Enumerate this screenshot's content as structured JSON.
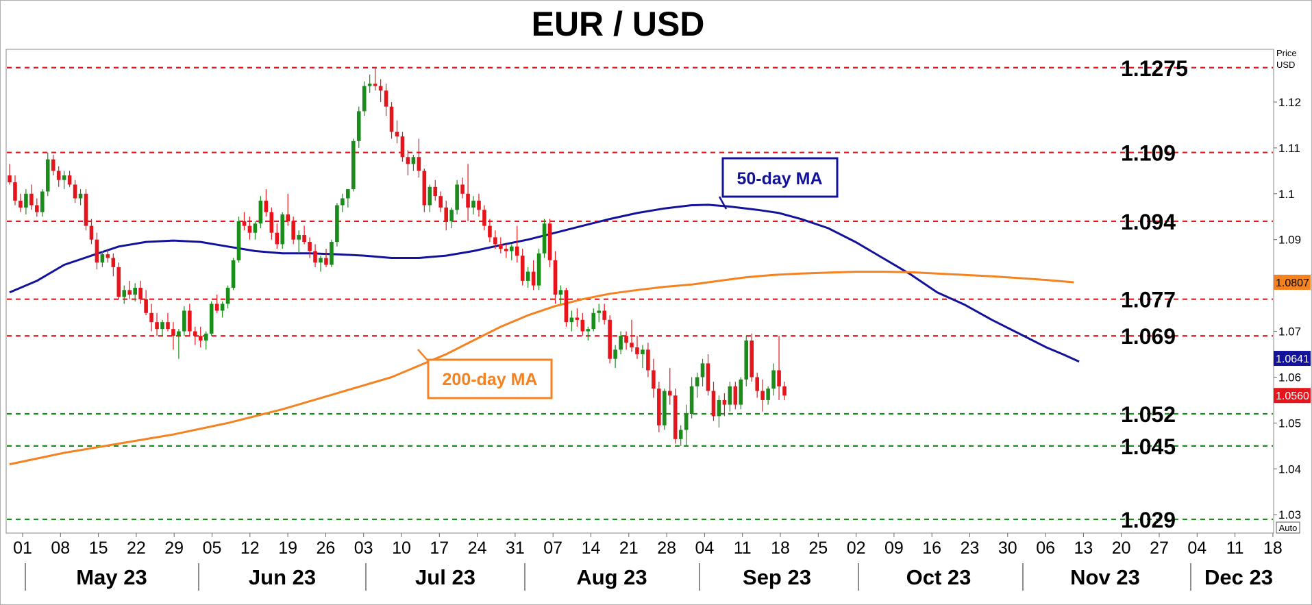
{
  "chart_data": {
    "type": "candlestick",
    "title": "EUR / USD",
    "y_axis_caption": [
      "Price",
      "USD"
    ],
    "ylim": [
      1.026,
      1.1315
    ],
    "y_ticks": [
      1.03,
      1.04,
      1.05,
      1.06,
      1.07,
      1.08,
      1.09,
      1.1,
      1.11,
      1.12
    ],
    "y_tick_labels": [
      "1.03",
      "1.04",
      "1.05",
      "1.06",
      "1.07",
      "",
      "1.09",
      "1.1",
      "1.11",
      "1.12"
    ],
    "auto_label": "Auto",
    "x_ticks": [
      "01",
      "08",
      "15",
      "22",
      "29",
      "05",
      "12",
      "19",
      "26",
      "03",
      "10",
      "17",
      "24",
      "31",
      "07",
      "14",
      "21",
      "28",
      "04",
      "11",
      "18",
      "25",
      "02",
      "09",
      "16",
      "23",
      "30",
      "06",
      "13",
      "20",
      "27",
      "04",
      "11",
      "18"
    ],
    "months": [
      "May 23",
      "Jun 23",
      "Jul 23",
      "Aug 23",
      "Sep 23",
      "Oct 23",
      "Nov 23",
      "Dec 23"
    ],
    "levels": [
      {
        "value": 1.1275,
        "label": "1.1275",
        "color": "#e8141b"
      },
      {
        "value": 1.109,
        "label": "1.109",
        "color": "#e8141b"
      },
      {
        "value": 1.094,
        "label": "1.094",
        "color": "#e8141b"
      },
      {
        "value": 1.077,
        "label": "1.077",
        "color": "#e8141b"
      },
      {
        "value": 1.069,
        "label": "1.069",
        "color": "#e8141b"
      },
      {
        "value": 1.052,
        "label": "1.052",
        "color": "#1a8c1a"
      },
      {
        "value": 1.045,
        "label": "1.045",
        "color": "#1a8c1a"
      },
      {
        "value": 1.029,
        "label": "1.029",
        "color": "#1a8c1a"
      }
    ],
    "price_badges": [
      {
        "value": 1.0807,
        "label": "1.0807",
        "bg": "#f58220",
        "fg": "#000000"
      },
      {
        "value": 1.0641,
        "label": "1.0641",
        "bg": "#12129a",
        "fg": "#ffffff"
      },
      {
        "value": 1.056,
        "label": "1.0560",
        "bg": "#e8141b",
        "fg": "#ffffff"
      }
    ],
    "series": [
      {
        "name": "50-day MA",
        "color": "#12129a",
        "points": [
          [
            0,
            1.0785
          ],
          [
            5,
            1.081
          ],
          [
            10,
            1.0845
          ],
          [
            15,
            1.0865
          ],
          [
            20,
            1.0885
          ],
          [
            25,
            1.0895
          ],
          [
            30,
            1.0898
          ],
          [
            35,
            1.0895
          ],
          [
            40,
            1.0885
          ],
          [
            45,
            1.0875
          ],
          [
            50,
            1.087
          ],
          [
            55,
            1.087
          ],
          [
            60,
            1.0868
          ],
          [
            65,
            1.0865
          ],
          [
            70,
            1.086
          ],
          [
            75,
            1.086
          ],
          [
            80,
            1.0865
          ],
          [
            85,
            1.0875
          ],
          [
            90,
            1.0888
          ],
          [
            95,
            1.09
          ],
          [
            100,
            1.0915
          ],
          [
            105,
            1.093
          ],
          [
            110,
            1.0945
          ],
          [
            115,
            1.0958
          ],
          [
            120,
            1.0968
          ],
          [
            125,
            1.0975
          ],
          [
            128,
            1.0976
          ],
          [
            132,
            1.0972
          ],
          [
            137,
            1.0965
          ],
          [
            141,
            1.0958
          ],
          [
            145,
            1.0945
          ],
          [
            150,
            1.0925
          ],
          [
            155,
            1.0895
          ],
          [
            160,
            1.086
          ],
          [
            165,
            1.0825
          ],
          [
            170,
            1.0785
          ],
          [
            175,
            1.0758
          ],
          [
            180,
            1.0725
          ],
          [
            185,
            1.0695
          ],
          [
            190,
            1.0665
          ],
          [
            193,
            1.065
          ],
          [
            196,
            1.0634
          ]
        ]
      },
      {
        "name": "200-day MA",
        "color": "#f58220",
        "points": [
          [
            0,
            1.041
          ],
          [
            10,
            1.0435
          ],
          [
            20,
            1.0455
          ],
          [
            30,
            1.0475
          ],
          [
            40,
            1.05
          ],
          [
            50,
            1.053
          ],
          [
            60,
            1.0565
          ],
          [
            70,
            1.06
          ],
          [
            80,
            1.065
          ],
          [
            85,
            1.068
          ],
          [
            90,
            1.071
          ],
          [
            95,
            1.0735
          ],
          [
            100,
            1.0755
          ],
          [
            105,
            1.077
          ],
          [
            110,
            1.0782
          ],
          [
            115,
            1.079
          ],
          [
            120,
            1.0797
          ],
          [
            125,
            1.0802
          ],
          [
            130,
            1.081
          ],
          [
            135,
            1.0818
          ],
          [
            140,
            1.0823
          ],
          [
            145,
            1.0826
          ],
          [
            150,
            1.0828
          ],
          [
            155,
            1.083
          ],
          [
            160,
            1.083
          ],
          [
            165,
            1.0829
          ],
          [
            170,
            1.0826
          ],
          [
            175,
            1.0823
          ],
          [
            180,
            1.082
          ],
          [
            185,
            1.0816
          ],
          [
            190,
            1.0812
          ],
          [
            195,
            1.0807
          ]
        ]
      }
    ],
    "annotations": [
      {
        "text": "50-day MA",
        "color": "#12129a"
      },
      {
        "text": "200-day MA",
        "color": "#f58220"
      }
    ],
    "candles": [
      [
        1.104,
        1.1065,
        1.102,
        1.1025
      ],
      [
        1.1025,
        1.104,
        1.0975,
        1.0985
      ],
      [
        1.0985,
        1.1,
        1.096,
        1.097
      ],
      [
        1.097,
        1.101,
        1.0955,
        1.1
      ],
      [
        1.1,
        1.102,
        1.0965,
        1.0975
      ],
      [
        1.0975,
        1.099,
        1.095,
        1.096
      ],
      [
        1.096,
        1.101,
        1.095,
        1.1005
      ],
      [
        1.1005,
        1.109,
        1.0995,
        1.1075
      ],
      [
        1.1075,
        1.1085,
        1.104,
        1.105
      ],
      [
        1.105,
        1.106,
        1.1015,
        1.103
      ],
      [
        1.103,
        1.105,
        1.101,
        1.104
      ],
      [
        1.104,
        1.105,
        1.1015,
        1.102
      ],
      [
        1.102,
        1.103,
        1.098,
        1.099
      ],
      [
        1.099,
        1.101,
        1.0975,
        1.1
      ],
      [
        1.1,
        1.101,
        1.092,
        1.093
      ],
      [
        1.093,
        1.0945,
        1.089,
        1.09
      ],
      [
        1.09,
        1.0915,
        1.0835,
        1.085
      ],
      [
        1.085,
        1.0875,
        1.084,
        1.0868
      ],
      [
        1.0868,
        1.088,
        1.085,
        1.086
      ],
      [
        1.086,
        1.087,
        1.082,
        1.084
      ],
      [
        1.084,
        1.085,
        1.077,
        1.0775
      ],
      [
        1.0775,
        1.08,
        1.076,
        1.079
      ],
      [
        1.079,
        1.081,
        1.077,
        1.078
      ],
      [
        1.078,
        1.0805,
        1.0765,
        1.0795
      ],
      [
        1.0795,
        1.081,
        1.076,
        1.077
      ],
      [
        1.077,
        1.079,
        1.0735,
        1.074
      ],
      [
        1.074,
        1.076,
        1.07,
        1.072
      ],
      [
        1.072,
        1.074,
        1.069,
        1.0705
      ],
      [
        1.0705,
        1.0725,
        1.069,
        1.072
      ],
      [
        1.072,
        1.074,
        1.07,
        1.0705
      ],
      [
        1.0705,
        1.072,
        1.066,
        1.069
      ],
      [
        1.069,
        1.0705,
        1.064,
        1.07
      ],
      [
        1.07,
        1.0755,
        1.069,
        1.0745
      ],
      [
        1.0745,
        1.076,
        1.069,
        1.07
      ],
      [
        1.07,
        1.071,
        1.067,
        1.069
      ],
      [
        1.069,
        1.071,
        1.0665,
        1.068
      ],
      [
        1.068,
        1.07,
        1.066,
        1.0695
      ],
      [
        1.0695,
        1.0765,
        1.069,
        1.076
      ],
      [
        1.076,
        1.078,
        1.074,
        1.0745
      ],
      [
        1.0745,
        1.0765,
        1.073,
        1.076
      ],
      [
        1.076,
        1.08,
        1.075,
        1.0795
      ],
      [
        1.0795,
        1.086,
        1.079,
        1.0855
      ],
      [
        1.0855,
        1.095,
        1.085,
        1.094
      ],
      [
        1.094,
        1.096,
        1.092,
        1.093
      ],
      [
        1.093,
        1.095,
        1.09,
        1.0915
      ],
      [
        1.0915,
        1.094,
        1.09,
        1.0935
      ],
      [
        1.0935,
        1.0995,
        1.0925,
        1.0985
      ],
      [
        1.0985,
        1.101,
        1.095,
        1.096
      ],
      [
        1.096,
        1.097,
        1.09,
        1.0915
      ],
      [
        1.0915,
        1.0935,
        1.088,
        1.089
      ],
      [
        1.089,
        1.096,
        1.088,
        1.0955
      ],
      [
        1.0955,
        1.1,
        1.093,
        1.094
      ],
      [
        1.094,
        1.095,
        1.089,
        1.09
      ],
      [
        1.09,
        1.092,
        1.087,
        1.091
      ],
      [
        1.091,
        1.093,
        1.089,
        1.0895
      ],
      [
        1.0895,
        1.0905,
        1.086,
        1.0875
      ],
      [
        1.0875,
        1.089,
        1.084,
        1.085
      ],
      [
        1.085,
        1.0865,
        1.083,
        1.086
      ],
      [
        1.086,
        1.088,
        1.084,
        1.0845
      ],
      [
        1.0845,
        1.09,
        1.084,
        1.0895
      ],
      [
        1.0895,
        1.098,
        1.0885,
        1.0975
      ],
      [
        1.0975,
        1.1,
        1.096,
        1.099
      ],
      [
        1.099,
        1.101,
        1.097,
        1.101
      ],
      [
        1.101,
        1.112,
        1.1005,
        1.1115
      ],
      [
        1.1115,
        1.119,
        1.11,
        1.118
      ],
      [
        1.118,
        1.1245,
        1.117,
        1.1235
      ],
      [
        1.1235,
        1.126,
        1.122,
        1.124
      ],
      [
        1.124,
        1.1275,
        1.1225,
        1.1235
      ],
      [
        1.1235,
        1.125,
        1.12,
        1.1225
      ],
      [
        1.1225,
        1.124,
        1.117,
        1.119
      ],
      [
        1.119,
        1.12,
        1.112,
        1.1135
      ],
      [
        1.1135,
        1.116,
        1.111,
        1.1125
      ],
      [
        1.1125,
        1.1135,
        1.107,
        1.108
      ],
      [
        1.108,
        1.1095,
        1.104,
        1.1065
      ],
      [
        1.1065,
        1.1085,
        1.105,
        1.108
      ],
      [
        1.108,
        1.112,
        1.1035,
        1.105
      ],
      [
        1.105,
        1.1055,
        1.096,
        1.0975
      ],
      [
        1.0975,
        1.102,
        1.096,
        1.1015
      ],
      [
        1.1015,
        1.103,
        1.0985,
        1.0995
      ],
      [
        1.0995,
        1.1005,
        1.096,
        1.097
      ],
      [
        1.097,
        1.0985,
        1.092,
        1.094
      ],
      [
        1.094,
        1.097,
        1.0925,
        1.0965
      ],
      [
        1.0965,
        1.103,
        1.0955,
        1.102
      ],
      [
        1.102,
        1.1035,
        1.099,
        1.1
      ],
      [
        1.1,
        1.1065,
        1.094,
        1.097
      ],
      [
        1.097,
        1.0995,
        1.0955,
        1.0985
      ],
      [
        1.0985,
        1.1,
        1.095,
        1.0965
      ],
      [
        1.0965,
        1.0975,
        1.092,
        1.093
      ],
      [
        1.093,
        1.0945,
        1.0895,
        1.0905
      ],
      [
        1.0905,
        1.092,
        1.088,
        1.089
      ],
      [
        1.089,
        1.0905,
        1.087,
        1.088
      ],
      [
        1.088,
        1.089,
        1.086,
        1.0875
      ],
      [
        1.0875,
        1.089,
        1.0855,
        1.0885
      ],
      [
        1.0885,
        1.093,
        1.085,
        1.0865
      ],
      [
        1.0865,
        1.088,
        1.08,
        1.081
      ],
      [
        1.081,
        1.084,
        1.0795,
        1.083
      ],
      [
        1.083,
        1.0855,
        1.079,
        1.08
      ],
      [
        1.08,
        1.088,
        1.079,
        1.087
      ],
      [
        1.087,
        1.0945,
        1.086,
        1.0935
      ],
      [
        1.0935,
        1.0945,
        1.084,
        1.0855
      ],
      [
        1.0855,
        1.0875,
        1.076,
        1.078
      ],
      [
        1.078,
        1.08,
        1.076,
        1.079
      ],
      [
        1.079,
        1.0795,
        1.071,
        1.072
      ],
      [
        1.072,
        1.0745,
        1.07,
        1.073
      ],
      [
        1.073,
        1.075,
        1.071,
        1.0725
      ],
      [
        1.0725,
        1.074,
        1.069,
        1.07
      ],
      [
        1.07,
        1.071,
        1.068,
        1.0705
      ],
      [
        1.0705,
        1.075,
        1.07,
        1.074
      ],
      [
        1.074,
        1.076,
        1.072,
        1.0745
      ],
      [
        1.0745,
        1.076,
        1.0715,
        1.0725
      ],
      [
        1.0725,
        1.0735,
        1.063,
        1.064
      ],
      [
        1.064,
        1.067,
        1.062,
        1.066
      ],
      [
        1.066,
        1.07,
        1.065,
        1.069
      ],
      [
        1.069,
        1.07,
        1.066,
        1.0675
      ],
      [
        1.0675,
        1.0725,
        1.0655,
        1.0665
      ],
      [
        1.0665,
        1.069,
        1.064,
        1.065
      ],
      [
        1.065,
        1.067,
        1.062,
        1.066
      ],
      [
        1.066,
        1.0675,
        1.06,
        1.0615
      ],
      [
        1.0615,
        1.064,
        1.0555,
        1.0575
      ],
      [
        1.0575,
        1.059,
        1.048,
        1.0495
      ],
      [
        1.0495,
        1.0575,
        1.0485,
        1.057
      ],
      [
        1.057,
        1.062,
        1.054,
        1.056
      ],
      [
        1.056,
        1.0575,
        1.0455,
        1.0465
      ],
      [
        1.0465,
        1.0495,
        1.045,
        1.0485
      ],
      [
        1.0485,
        1.054,
        1.045,
        1.052
      ],
      [
        1.052,
        1.06,
        1.051,
        1.058
      ],
      [
        1.058,
        1.061,
        1.0555,
        1.06
      ],
      [
        1.06,
        1.064,
        1.058,
        1.063
      ],
      [
        1.063,
        1.065,
        1.056,
        1.057
      ],
      [
        1.057,
        1.059,
        1.0505,
        1.0515
      ],
      [
        1.0515,
        1.056,
        1.049,
        1.055
      ],
      [
        1.055,
        1.0565,
        1.0515,
        1.054
      ],
      [
        1.054,
        1.059,
        1.0525,
        1.058
      ],
      [
        1.058,
        1.059,
        1.053,
        1.054
      ],
      [
        1.054,
        1.06,
        1.053,
        1.0595
      ],
      [
        1.0595,
        1.069,
        1.058,
        1.068
      ],
      [
        1.068,
        1.0695,
        1.059,
        1.06
      ],
      [
        1.06,
        1.061,
        1.0555,
        1.057
      ],
      [
        1.057,
        1.0595,
        1.0525,
        1.055
      ],
      [
        1.055,
        1.058,
        1.054,
        1.0575
      ],
      [
        1.0575,
        1.063,
        1.056,
        1.0615
      ],
      [
        1.0615,
        1.069,
        1.055,
        1.058
      ],
      [
        1.058,
        1.059,
        1.055,
        1.056
      ]
    ]
  }
}
